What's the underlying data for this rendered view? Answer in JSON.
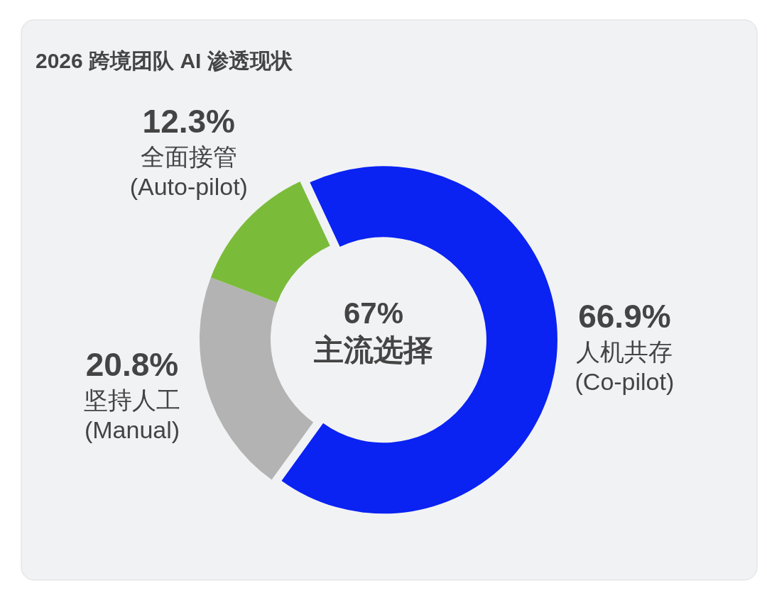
{
  "chart_data": {
    "type": "donut",
    "title": "2026 跨境团队 AI 渗透现状",
    "categories": [
      "人机共存 (Co-pilot)",
      "坚持人工 (Manual)",
      "全面接管 (Auto-pilot)"
    ],
    "values": [
      66.9,
      20.8,
      12.3
    ],
    "colors": [
      "#0a22f2",
      "#b3b3b3",
      "#7bbb3a"
    ],
    "value_labels": [
      "66.9%",
      "20.8%",
      "12.3%"
    ],
    "annotations": [
      "67%",
      "主流选择"
    ]
  }
}
